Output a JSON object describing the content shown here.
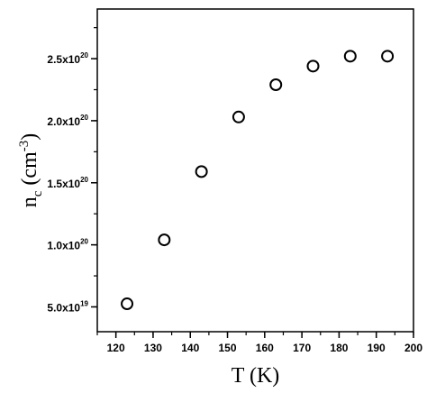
{
  "chart_data": {
    "type": "scatter",
    "xlabel": "T (K)",
    "ylabel": {
      "base": "n",
      "sub": "c",
      "units_open": "(cm",
      "units_sup": "-3",
      "units_close": ")"
    },
    "xlim": [
      115,
      200
    ],
    "ylim": [
      3e+19,
      2.9e+20
    ],
    "x_ticks": [
      {
        "value": 120,
        "label": "120"
      },
      {
        "value": 130,
        "label": "130"
      },
      {
        "value": 140,
        "label": "140"
      },
      {
        "value": 150,
        "label": "150"
      },
      {
        "value": 160,
        "label": "160"
      },
      {
        "value": 170,
        "label": "170"
      },
      {
        "value": 180,
        "label": "180"
      },
      {
        "value": 190,
        "label": "190"
      },
      {
        "value": 200,
        "label": "200"
      }
    ],
    "y_ticks": [
      {
        "value": 5e+19,
        "mantissa": "5.0x10",
        "exponent": "19"
      },
      {
        "value": 1e+20,
        "mantissa": "1.0x10",
        "exponent": "20"
      },
      {
        "value": 1.5e+20,
        "mantissa": "1.5x10",
        "exponent": "20"
      },
      {
        "value": 2e+20,
        "mantissa": "2.0x10",
        "exponent": "20"
      },
      {
        "value": 2.5e+20,
        "mantissa": "2.5x10",
        "exponent": "20"
      }
    ],
    "x_minor_step": 5,
    "y_minor_step": 2.5e+19,
    "marker": "open-circle",
    "points": [
      {
        "x": 123,
        "y": 5.25e+19
      },
      {
        "x": 133,
        "y": 1.04e+20
      },
      {
        "x": 143,
        "y": 1.59e+20
      },
      {
        "x": 153,
        "y": 2.03e+20
      },
      {
        "x": 163,
        "y": 2.29e+20
      },
      {
        "x": 173,
        "y": 2.44e+20
      },
      {
        "x": 183,
        "y": 2.52e+20
      },
      {
        "x": 193,
        "y": 2.52e+20
      }
    ]
  }
}
